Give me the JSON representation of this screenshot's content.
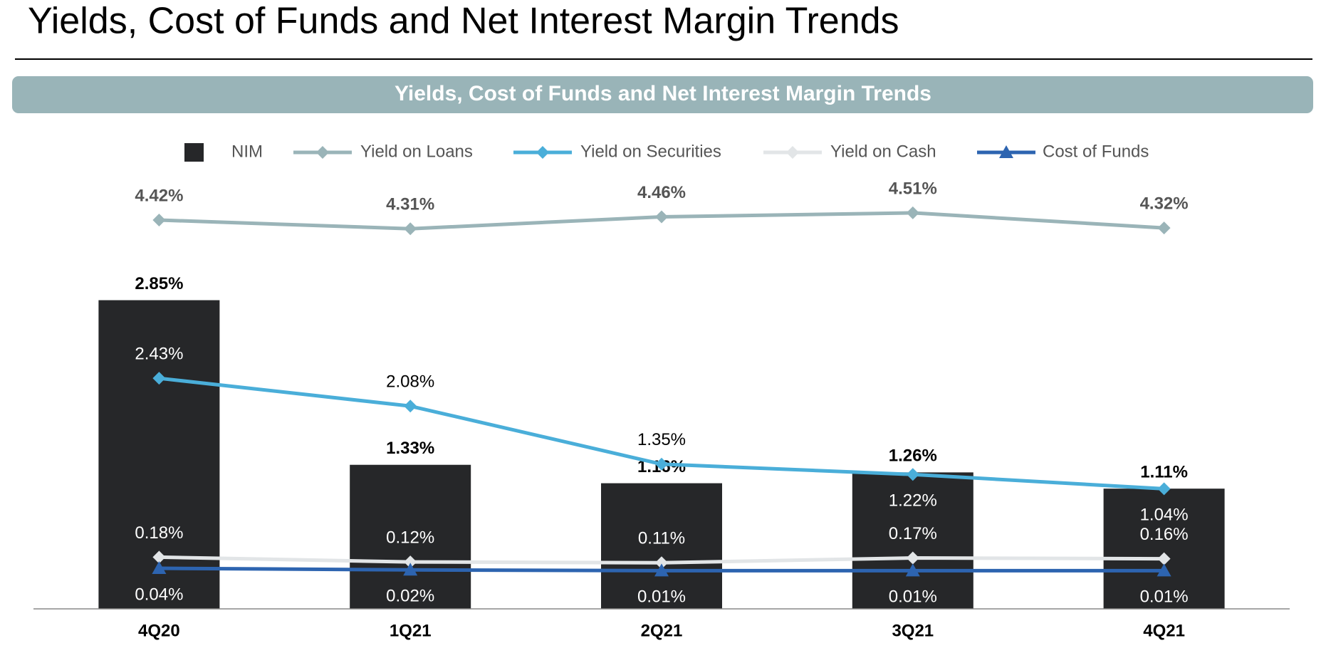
{
  "page_title": "Yields, Cost of Funds and Net Interest Margin Trends",
  "chart_data": {
    "type": "bar",
    "title": "Yields, Cost of Funds and Net Interest Margin Trends",
    "categories": [
      "4Q20",
      "1Q21",
      "2Q21",
      "3Q21",
      "4Q21"
    ],
    "ylim": [
      0,
      4.06
    ],
    "y2lim": [
      -0.47,
      5.06
    ],
    "series": [
      {
        "name": "NIM",
        "type": "bar",
        "color": "#262729",
        "values": [
          2.85,
          1.33,
          1.16,
          1.26,
          1.11
        ],
        "value_labels": [
          "2.85%",
          "1.33%",
          "1.16%",
          "1.26%",
          "1.11%"
        ]
      },
      {
        "name": "Yield on Loans",
        "type": "line",
        "marker": "diamond",
        "axis": "y2",
        "color": "#9ab4b8",
        "values": [
          4.42,
          4.31,
          4.46,
          4.51,
          4.32
        ],
        "value_labels": [
          "4.42%",
          "4.31%",
          "4.46%",
          "4.51%",
          "4.32%"
        ]
      },
      {
        "name": "Yield on Securities",
        "type": "line",
        "marker": "diamond",
        "axis": "y2",
        "color": "#4aaed9",
        "values": [
          2.43,
          2.08,
          1.35,
          1.22,
          1.04
        ],
        "value_labels": [
          "2.43%",
          "2.08%",
          "1.35%",
          "1.22%",
          "1.04%"
        ]
      },
      {
        "name": "Yield on Cash",
        "type": "line",
        "marker": "diamond",
        "axis": "y2",
        "color": "#e2e5e7",
        "values": [
          0.18,
          0.12,
          0.11,
          0.17,
          0.16
        ],
        "value_labels": [
          "0.18%",
          "0.12%",
          "0.11%",
          "0.17%",
          "0.16%"
        ]
      },
      {
        "name": "Cost of Funds",
        "type": "line",
        "marker": "triangle",
        "axis": "y2",
        "color": "#2d64b0",
        "values": [
          0.04,
          0.02,
          0.01,
          0.01,
          0.01
        ],
        "value_labels": [
          "0.04%",
          "0.02%",
          "0.01%",
          "0.01%",
          "0.01%"
        ]
      }
    ]
  }
}
